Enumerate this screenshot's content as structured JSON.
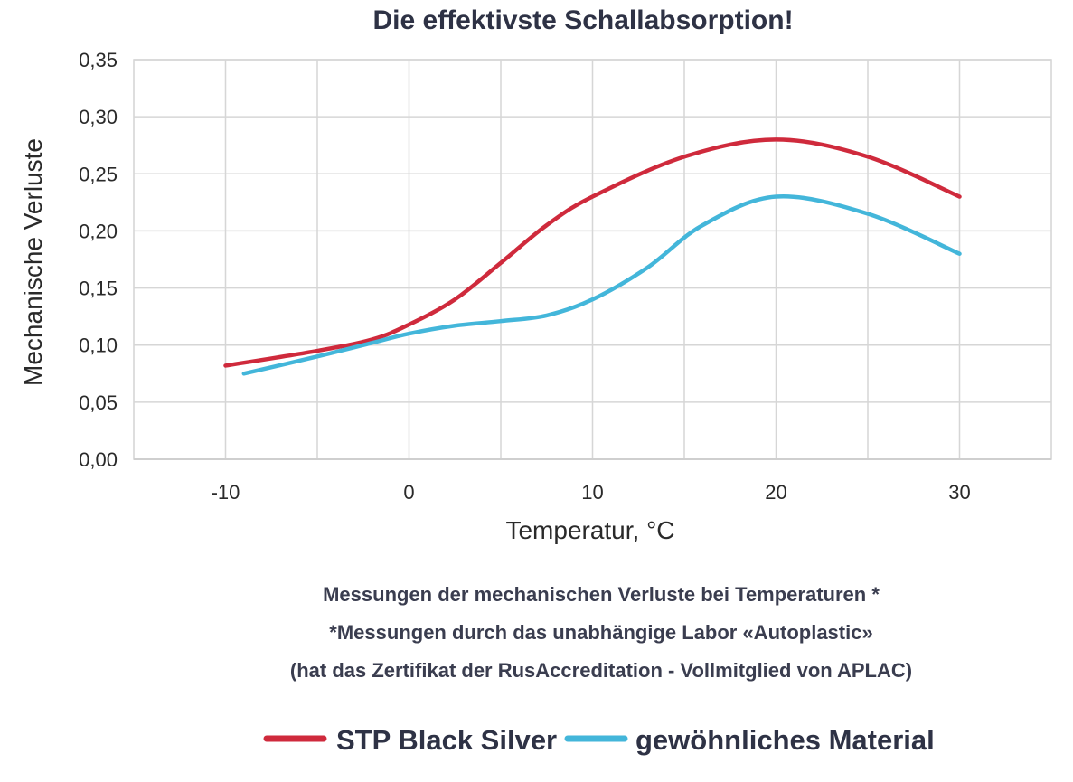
{
  "chart_data": {
    "type": "line",
    "title": "Die effektivste Schallabsorption!",
    "xlabel": "Temperatur, °C",
    "ylabel": "Mechanische Verluste",
    "xlim": [
      -15,
      35
    ],
    "ylim": [
      0,
      0.35
    ],
    "x_ticks": [
      -10,
      0,
      10,
      20,
      30
    ],
    "x_tick_labels": [
      "-10",
      "0",
      "10",
      "20",
      "30"
    ],
    "y_ticks": [
      0,
      0.05,
      0.1,
      0.15,
      0.2,
      0.25,
      0.3,
      0.35
    ],
    "y_tick_labels": [
      "0,00",
      "0,05",
      "0,10",
      "0,15",
      "0,20",
      "0,25",
      "0,30",
      "0,35"
    ],
    "grid": true,
    "legend_position": "bottom",
    "series": [
      {
        "name": "STP Black Silver",
        "color": "#cf2a3c",
        "x": [
          -10,
          -5,
          -2,
          0,
          2.5,
          5,
          7.5,
          10,
          15,
          20,
          25,
          30
        ],
        "y": [
          0.082,
          0.095,
          0.105,
          0.118,
          0.14,
          0.172,
          0.205,
          0.23,
          0.265,
          0.28,
          0.265,
          0.23
        ]
      },
      {
        "name": "gewöhnliches Material",
        "color": "#43b6da",
        "x": [
          -9,
          -5,
          -2,
          0,
          2.5,
          5,
          7.5,
          10,
          13,
          16,
          20,
          25,
          30
        ],
        "y": [
          0.075,
          0.09,
          0.102,
          0.11,
          0.117,
          0.121,
          0.126,
          0.14,
          0.168,
          0.205,
          0.23,
          0.215,
          0.18
        ]
      }
    ]
  },
  "notes": [
    "Messungen der mechanischen Verluste bei Temperaturen *",
    "*Messungen durch das unabhängige Labor «Autoplastic»",
    "(hat das Zertifikat der RusAccreditation - Vollmitglied von APLAC)"
  ]
}
